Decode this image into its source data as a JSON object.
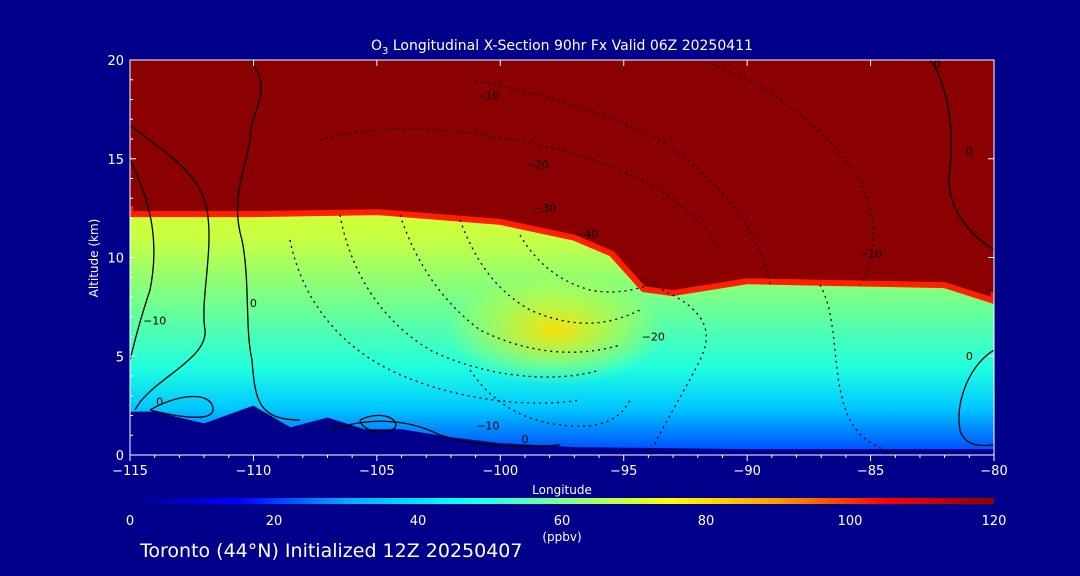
{
  "chart_data": {
    "type": "heatmap",
    "title_main": "O",
    "title_sub": "3",
    "title_rest": " Longitudinal X-Section 90hr  Fx Valid 06Z 20250411",
    "xlabel": "Longitude",
    "ylabel": "Altitude (km)",
    "xlim": [
      -115,
      -80
    ],
    "ylim": [
      0,
      20
    ],
    "x_ticks": [
      -115,
      -110,
      -105,
      -100,
      -95,
      -90,
      -85,
      -80
    ],
    "x_tick_labels": [
      "−115",
      "−110",
      "−105",
      "−100",
      "−95",
      "−90",
      "−85",
      "−80"
    ],
    "y_ticks": [
      0,
      5,
      10,
      15,
      20
    ],
    "y_tick_labels": [
      "0",
      "5",
      "10",
      "15",
      "20"
    ],
    "colorbar": {
      "min": 0,
      "max": 120,
      "ticks": [
        0,
        20,
        40,
        60,
        80,
        100,
        120
      ],
      "tick_labels": [
        "0",
        "20",
        "40",
        "60",
        "80",
        "100",
        "120"
      ],
      "label": "(ppbv)",
      "colors": [
        "#00008b",
        "#0000ff",
        "#00aaff",
        "#00ffff",
        "#80ff90",
        "#ffff00",
        "#ff9900",
        "#ff0000",
        "#8b0000"
      ]
    },
    "field": {
      "tropopause_km": [
        [
          -115,
          12.2
        ],
        [
          -110,
          12.2
        ],
        [
          -105,
          12.3
        ],
        [
          -100,
          11.8
        ],
        [
          -97,
          11.0
        ],
        [
          -95.5,
          10.2
        ],
        [
          -94.2,
          8.4
        ],
        [
          -93,
          8.2
        ],
        [
          -90,
          8.8
        ],
        [
          -86,
          8.7
        ],
        [
          -82,
          8.6
        ],
        [
          -80,
          7.8
        ]
      ],
      "upper_value_ppbv": 120,
      "mid_value_ppbv": 62,
      "surface_value_ppbv": 30
    },
    "terrain_km": [
      [
        -115,
        2.2
      ],
      [
        -114,
        2.2
      ],
      [
        -112,
        1.6
      ],
      [
        -110,
        2.5
      ],
      [
        -108.5,
        1.4
      ],
      [
        -107,
        1.9
      ],
      [
        -105.5,
        1.3
      ],
      [
        -104,
        1.3
      ],
      [
        -102,
        0.9
      ],
      [
        -100,
        0.6
      ],
      [
        -97,
        0.4
      ],
      [
        -90,
        0.3
      ],
      [
        -80,
        0.3
      ]
    ],
    "contour_labels": [
      {
        "text": "−10",
        "lon": -100.5,
        "alt": 18.0
      },
      {
        "text": "−20",
        "lon": -98.5,
        "alt": 14.5
      },
      {
        "text": "−30",
        "lon": -98.2,
        "alt": 12.3
      },
      {
        "text": "−40",
        "lon": -96.5,
        "alt": 11.0
      },
      {
        "text": "−20",
        "lon": -93.8,
        "alt": 5.8
      },
      {
        "text": "−10",
        "lon": -85,
        "alt": 10.0
      },
      {
        "text": "−10",
        "lon": -100.5,
        "alt": 1.3
      },
      {
        "text": "−10",
        "lon": -114,
        "alt": 6.6
      },
      {
        "text": "0",
        "lon": -110,
        "alt": 7.5
      },
      {
        "text": "0",
        "lon": -113.8,
        "alt": 2.5
      },
      {
        "text": "0",
        "lon": -99,
        "alt": 0.6
      },
      {
        "text": "0",
        "lon": -81,
        "alt": 4.8
      },
      {
        "text": "0",
        "lon": -82.3,
        "alt": 19.6
      },
      {
        "text": "0",
        "lon": -81,
        "alt": 15.2
      }
    ]
  },
  "footer_text": "Toronto (44°N) Initialized 12Z 20250407"
}
